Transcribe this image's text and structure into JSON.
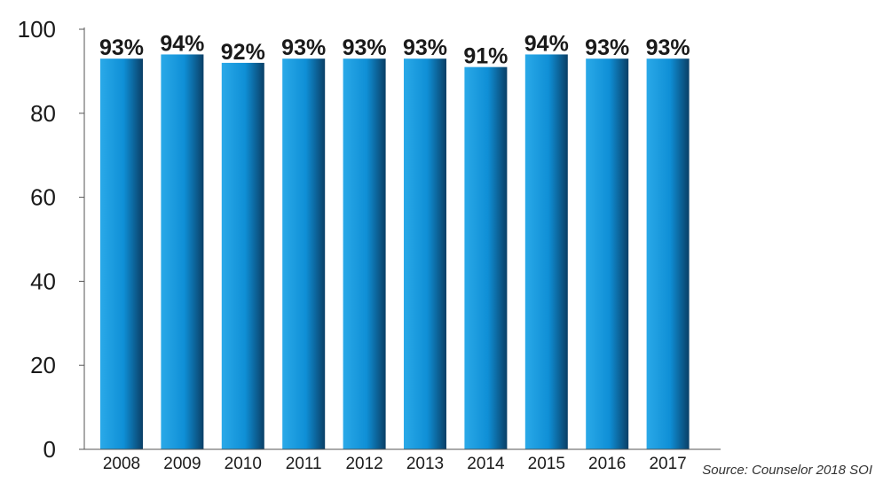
{
  "chart_data": {
    "type": "bar",
    "categories": [
      "2008",
      "2009",
      "2010",
      "2011",
      "2012",
      "2013",
      "2014",
      "2015",
      "2016",
      "2017"
    ],
    "values": [
      93,
      94,
      92,
      93,
      93,
      93,
      91,
      94,
      93,
      93
    ],
    "data_labels": [
      "93%",
      "94%",
      "92%",
      "93%",
      "93%",
      "93%",
      "91%",
      "94%",
      "93%",
      "93%"
    ],
    "y_ticks": [
      0,
      20,
      40,
      60,
      80,
      100
    ],
    "ylim": [
      0,
      100
    ],
    "grid": false,
    "bar_colors": {
      "light": "#2aa9e8",
      "mid": "#0f8fd6",
      "dark": "#0a3f66"
    },
    "axis_color": "#555555"
  },
  "source": "Source: Counselor 2018 SOI"
}
